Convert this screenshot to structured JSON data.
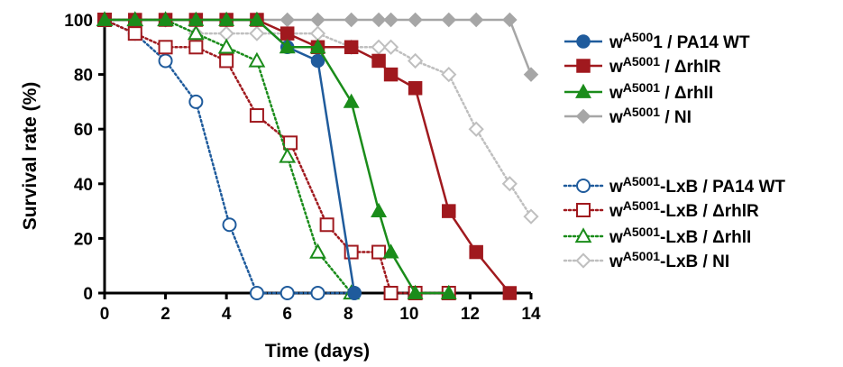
{
  "chart_data": {
    "type": "line",
    "xlabel": "Time (days)",
    "ylabel": "Survival rate (%)",
    "xlim": [
      0,
      14
    ],
    "ylim": [
      0,
      100
    ],
    "xticks": [
      0,
      2,
      4,
      6,
      8,
      10,
      12,
      14
    ],
    "yticks": [
      0,
      20,
      40,
      60,
      80,
      100
    ],
    "grid": false,
    "legend_position": "right",
    "series": [
      {
        "legend": {
          "base": "w",
          "sup": "A500",
          "rest": "1 / PA14 WT"
        },
        "color": "#1f5b9c",
        "marker": "circle",
        "filled": true,
        "dash": "solid",
        "x": [
          0,
          1,
          2,
          3,
          4,
          5,
          6,
          7,
          8.2
        ],
        "y": [
          100,
          100,
          100,
          100,
          100,
          100,
          90,
          85,
          0
        ]
      },
      {
        "legend": {
          "base": "w",
          "sup": "A5001",
          "rest": " / ΔrhlR"
        },
        "color": "#a0191e",
        "marker": "square",
        "filled": true,
        "dash": "solid",
        "x": [
          0,
          1,
          2,
          3,
          4,
          5,
          6,
          7,
          8.1,
          9,
          9.4,
          10.2,
          11.3,
          12.2,
          13.3
        ],
        "y": [
          100,
          100,
          100,
          100,
          100,
          100,
          95,
          90,
          90,
          85,
          80,
          75,
          30,
          15,
          0
        ]
      },
      {
        "legend": {
          "base": "w",
          "sup": "A5001",
          "rest": " / ΔrhlI"
        },
        "color": "#1a8c1a",
        "marker": "triangle",
        "filled": true,
        "dash": "solid",
        "x": [
          0,
          1,
          2,
          3,
          4,
          5,
          6,
          7,
          8.1,
          9,
          9.4,
          10.2,
          11.3
        ],
        "y": [
          100,
          100,
          100,
          100,
          100,
          100,
          90,
          90,
          70,
          30,
          15,
          0,
          0
        ]
      },
      {
        "legend": {
          "base": "w",
          "sup": "A5001",
          "rest": " / NI"
        },
        "color": "#a6a6a6",
        "marker": "diamond",
        "filled": true,
        "dash": "solid",
        "x": [
          0,
          1,
          2,
          3,
          4,
          5,
          6,
          7,
          8.1,
          9,
          9.4,
          10.2,
          11.3,
          12.2,
          13.3,
          14
        ],
        "y": [
          100,
          100,
          100,
          100,
          100,
          100,
          100,
          100,
          100,
          100,
          100,
          100,
          100,
          100,
          100,
          80
        ]
      },
      {
        "legend": {
          "base": "w",
          "sup": "A5001",
          "rest": "-LxB  / PA14 WT"
        },
        "color": "#1f5b9c",
        "marker": "circle",
        "filled": false,
        "dash": "dotted",
        "x": [
          0,
          1,
          2,
          3,
          4.1,
          5,
          6,
          7,
          8.2
        ],
        "y": [
          100,
          95,
          85,
          70,
          25,
          0,
          0,
          0,
          0
        ]
      },
      {
        "legend": {
          "base": "w",
          "sup": "A5001",
          "rest": "-LxB / ΔrhlR"
        },
        "color": "#a0191e",
        "marker": "square",
        "filled": false,
        "dash": "dotted",
        "x": [
          0,
          1,
          2,
          3,
          4,
          5,
          6.1,
          7.3,
          8.1,
          9,
          9.4,
          10.2,
          11.3
        ],
        "y": [
          100,
          95,
          90,
          90,
          85,
          65,
          55,
          25,
          15,
          15,
          0,
          0,
          0
        ]
      },
      {
        "legend": {
          "base": "w",
          "sup": "A5001",
          "rest": "-LxB / ΔrhlI"
        },
        "color": "#1a8c1a",
        "marker": "triangle",
        "filled": false,
        "dash": "dotted",
        "x": [
          0,
          1,
          2,
          3,
          4,
          5,
          6,
          7,
          8.1
        ],
        "y": [
          100,
          100,
          100,
          95,
          90,
          85,
          50,
          15,
          0
        ]
      },
      {
        "legend": {
          "base": "w",
          "sup": "A5001",
          "rest": "-LxB / NI"
        },
        "color": "#bfbfbf",
        "marker": "diamond",
        "filled": false,
        "dash": "dotted",
        "x": [
          0,
          1,
          2,
          3,
          4,
          5,
          6,
          7,
          8.1,
          9,
          9.4,
          10.2,
          11.3,
          12.2,
          13.3,
          14
        ],
        "y": [
          100,
          100,
          100,
          95,
          95,
          95,
          95,
          95,
          90,
          90,
          90,
          85,
          80,
          60,
          40,
          28
        ]
      }
    ]
  }
}
